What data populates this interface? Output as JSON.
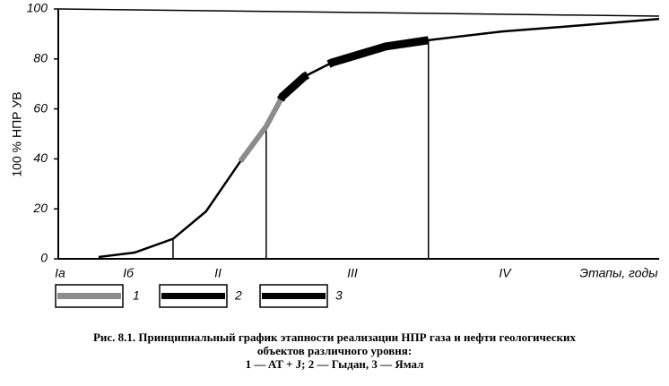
{
  "chart_data": {
    "type": "line",
    "y_label": "100 %   НПР УВ",
    "xlim": [
      0,
      100
    ],
    "ylim": [
      0,
      100
    ],
    "yticks": [
      0,
      20,
      40,
      60,
      80,
      100
    ],
    "x": [
      6.7,
      12.7,
      19.1,
      24.6,
      30.3,
      34.6,
      37.3,
      41,
      45.5,
      54.5,
      61.6,
      73.9,
      87.3,
      100
    ],
    "series": [
      {
        "color": "#000000",
        "values": [
          0.7,
          2.5,
          8,
          19,
          39,
          53,
          65,
          73,
          78.5,
          85,
          87.5,
          91,
          93.5,
          96
        ]
      }
    ],
    "stage_boundaries": [
      19.1,
      34.6,
      61.6
    ],
    "stages": [
      "Ia",
      "Iб",
      "II",
      "III",
      "IV"
    ],
    "x_label": "Этапы, годы",
    "highlights": [
      {
        "legend": "1",
        "color": "#8c8c8c",
        "x_from": 30.3,
        "x_to": 41
      },
      {
        "legend": "2",
        "color": "#000000",
        "x_from": 37,
        "x_to": 41.5
      },
      {
        "legend": "3",
        "color": "#000000",
        "x_from": 45,
        "x_to": 61.6
      }
    ],
    "caption": [
      "Рис. 8.1. Принципиальный график этапности реализации НПР газа и нефти геологических",
      "объектов различного уровня:",
      "1 — AT + J; 2 — Гыдан, 3 — Ямал"
    ]
  }
}
